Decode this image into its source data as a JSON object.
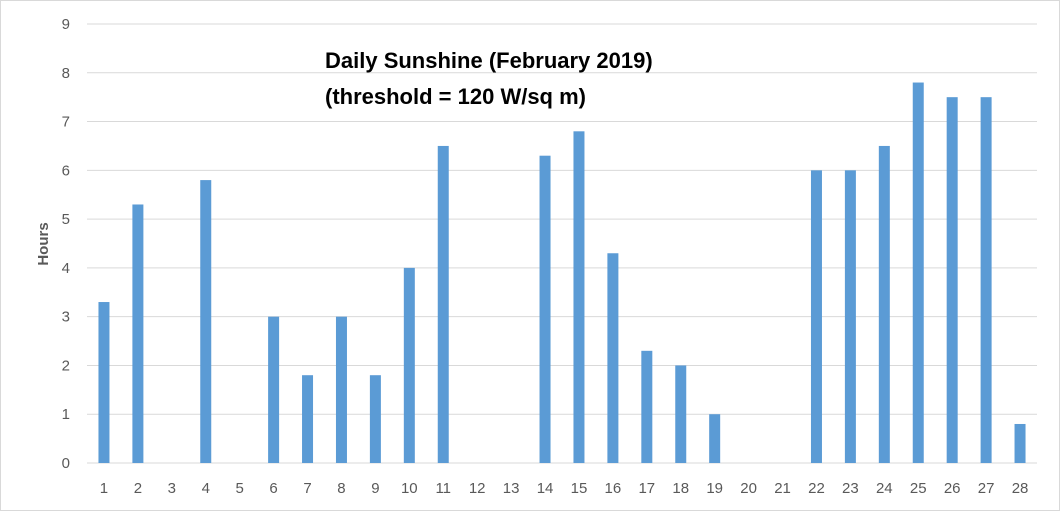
{
  "chart_data": {
    "type": "bar",
    "title_lines": [
      "Daily Sunshine (February 2019)",
      "(threshold = 120 W/sq m)"
    ],
    "xlabel": "",
    "ylabel": "Hours",
    "categories": [
      "1",
      "2",
      "3",
      "4",
      "5",
      "6",
      "7",
      "8",
      "9",
      "10",
      "11",
      "12",
      "13",
      "14",
      "15",
      "16",
      "17",
      "18",
      "19",
      "20",
      "21",
      "22",
      "23",
      "24",
      "25",
      "26",
      "27",
      "28"
    ],
    "values": [
      3.3,
      5.3,
      0,
      5.8,
      0,
      3.0,
      1.8,
      3.0,
      1.8,
      4.0,
      6.5,
      0,
      0,
      6.3,
      6.8,
      4.3,
      2.3,
      2.0,
      1.0,
      0,
      0,
      6.0,
      6.0,
      6.5,
      7.8,
      7.5,
      7.5,
      0.8
    ],
    "yticks": [
      "0",
      "1",
      "2",
      "3",
      "4",
      "5",
      "6",
      "7",
      "8",
      "9"
    ],
    "ylim": [
      0,
      9
    ],
    "grid": true,
    "bar_color": "#5b9bd5",
    "grid_color": "#d9d9d9",
    "legend": "none"
  }
}
